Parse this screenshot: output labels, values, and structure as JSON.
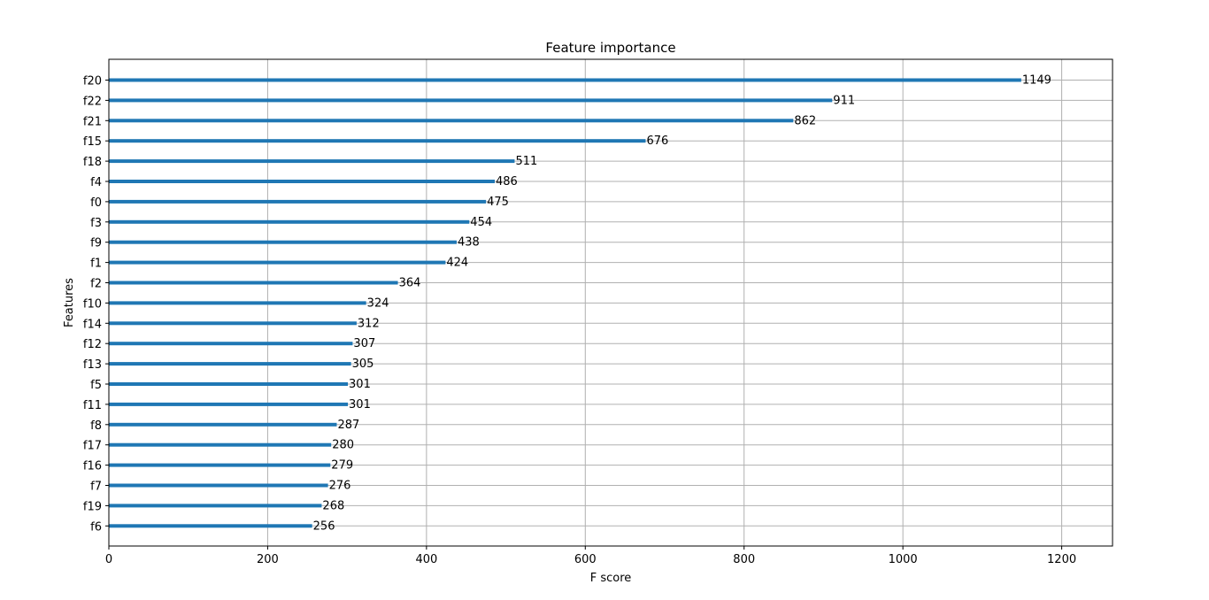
{
  "chart_data": {
    "type": "bar",
    "orientation": "horizontal",
    "title": "Feature importance",
    "xlabel": "F score",
    "ylabel": "Features",
    "xlim": [
      0,
      1264
    ],
    "x_ticks": [
      0,
      200,
      400,
      600,
      800,
      1000,
      1200
    ],
    "grid": true,
    "bar_color": "#1f77b4",
    "categories": [
      "f20",
      "f22",
      "f21",
      "f15",
      "f18",
      "f4",
      "f0",
      "f3",
      "f9",
      "f1",
      "f2",
      "f10",
      "f14",
      "f12",
      "f13",
      "f5",
      "f11",
      "f8",
      "f17",
      "f16",
      "f7",
      "f19",
      "f6"
    ],
    "values": [
      1149,
      911,
      862,
      676,
      511,
      486,
      475,
      454,
      438,
      424,
      364,
      324,
      312,
      307,
      305,
      301,
      301,
      287,
      280,
      279,
      276,
      268,
      256
    ],
    "data_labels": true
  }
}
